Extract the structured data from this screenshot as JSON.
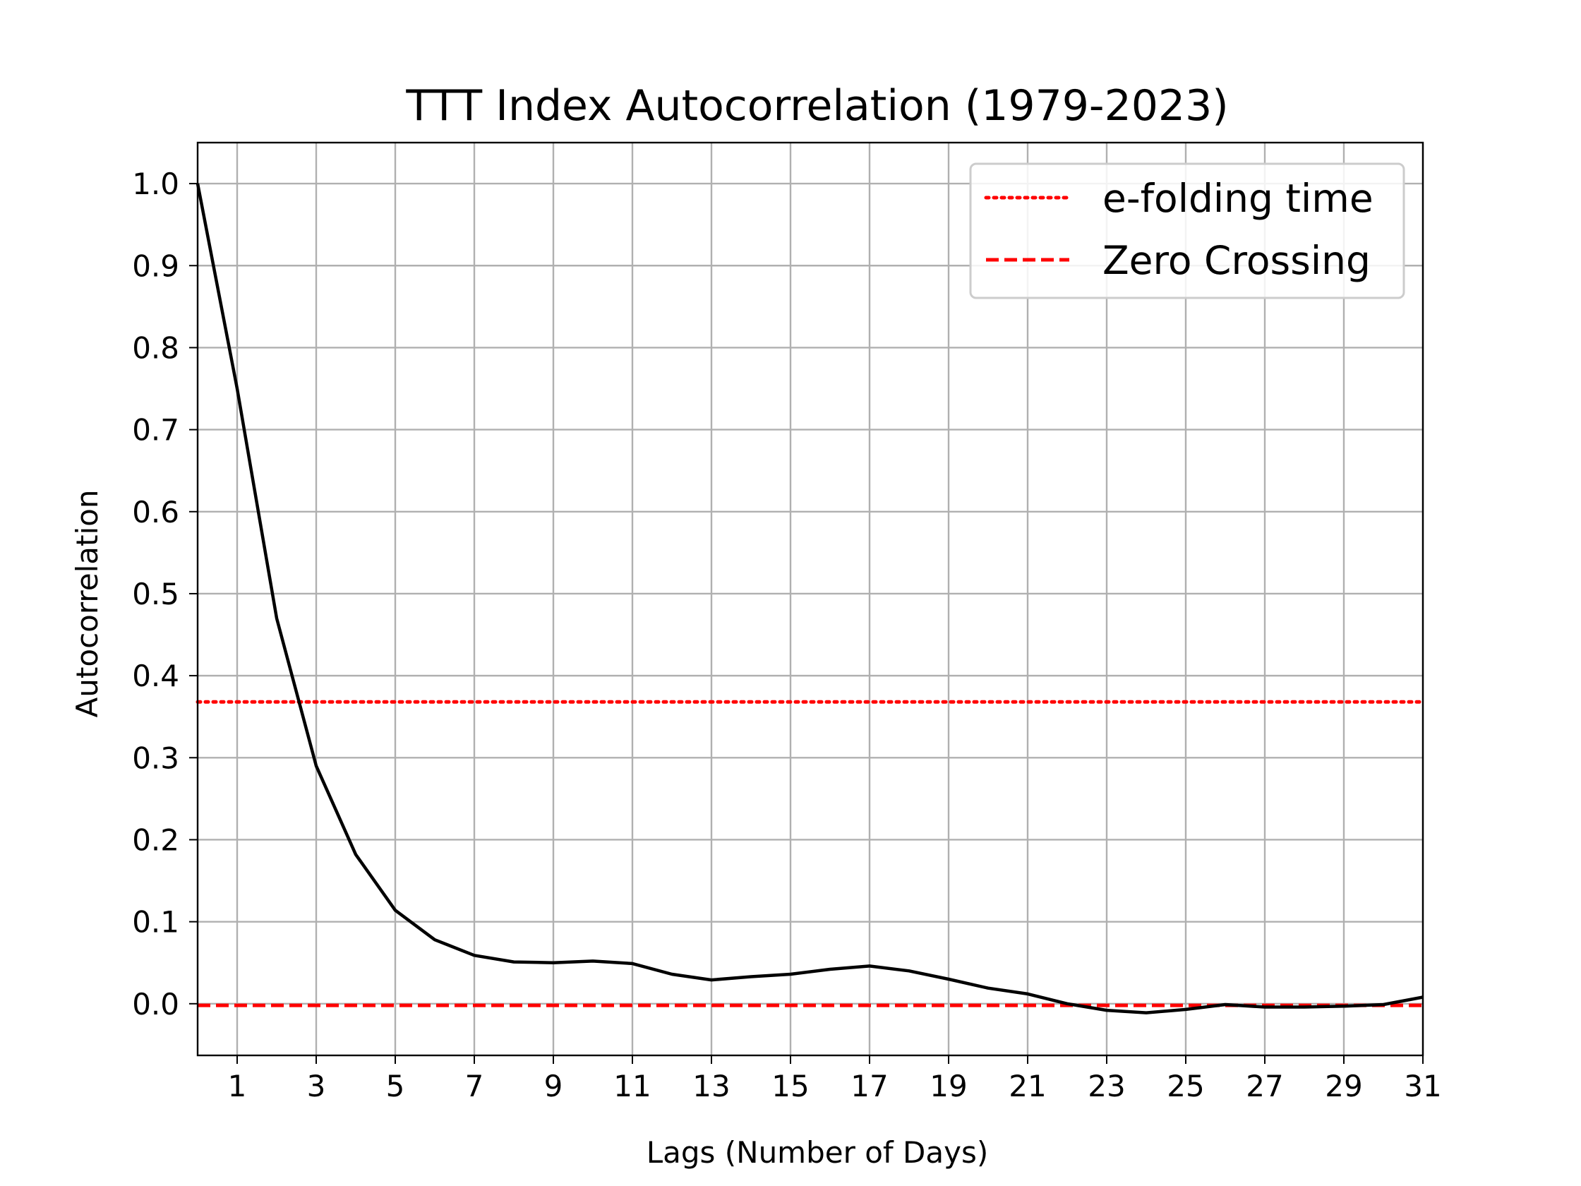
{
  "chart_data": {
    "type": "line",
    "title": "TTT Index Autocorrelation (1979-2023)",
    "xlabel": "Lags (Number of Days)",
    "ylabel": "Autocorrelation",
    "xlim": [
      0,
      31
    ],
    "ylim": [
      -0.063,
      1.05
    ],
    "grid": true,
    "legend_position": "top-right",
    "x_ticks": [
      "1",
      "3",
      "5",
      "7",
      "9",
      "11",
      "13",
      "15",
      "17",
      "19",
      "21",
      "23",
      "25",
      "27",
      "29",
      "31"
    ],
    "y_ticks": [
      "0.0",
      "0.1",
      "0.2",
      "0.3",
      "0.4",
      "0.5",
      "0.6",
      "0.7",
      "0.8",
      "0.9",
      "1.0"
    ],
    "series": [
      {
        "color": "#000000",
        "x": [
          0,
          1,
          2,
          3,
          4,
          5,
          6,
          7,
          8,
          9,
          10,
          11,
          12,
          13,
          14,
          15,
          16,
          17,
          18,
          19,
          20,
          21,
          22,
          23,
          24,
          25,
          26,
          27,
          28,
          29,
          30,
          31
        ],
        "values": [
          1.0,
          0.75,
          0.47,
          0.29,
          0.182,
          0.114,
          0.078,
          0.059,
          0.051,
          0.05,
          0.052,
          0.049,
          0.036,
          0.029,
          0.033,
          0.036,
          0.042,
          0.046,
          0.04,
          0.03,
          0.019,
          0.012,
          0.0,
          -0.008,
          -0.011,
          -0.007,
          -0.001,
          -0.004,
          -0.004,
          -0.003,
          -0.001,
          0.008
        ]
      }
    ],
    "reference_lines": [
      {
        "name": "e-folding time",
        "y": 0.368,
        "style": "dotted",
        "color": "#ff0000"
      },
      {
        "name": "Zero Crossing",
        "y": -0.002,
        "style": "dashed",
        "color": "#ff0000"
      }
    ]
  }
}
